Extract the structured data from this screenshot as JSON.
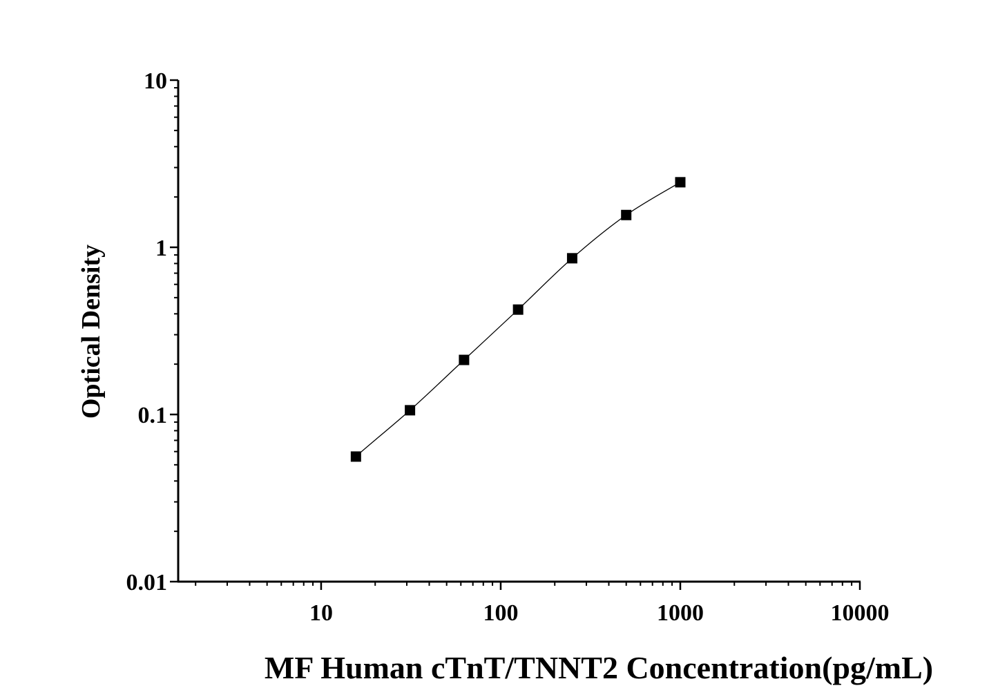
{
  "chart_data": {
    "type": "scatter",
    "title": "",
    "xlabel": "MF Human cTnT/TNNT2 Concentration(pg/mL)",
    "ylabel": "Optical Density",
    "xscale": "log",
    "yscale": "log",
    "xlim": [
      1.6,
      10000
    ],
    "ylim": [
      0.01,
      10
    ],
    "xticks": [
      10,
      100,
      1000,
      10000
    ],
    "xtick_labels": [
      "10",
      "100",
      "1000",
      "10000"
    ],
    "yticks": [
      0.01,
      0.1,
      1,
      10
    ],
    "ytick_labels": [
      "0.01",
      "0.1",
      "1",
      "10"
    ],
    "grid": false,
    "legend": "none",
    "marker": "square",
    "fit_line": true,
    "colors": {
      "marker": "#000000",
      "line": "#000000",
      "axis": "#000000"
    },
    "series": [
      {
        "x": [
          15.625,
          31.25,
          62.5,
          125,
          250,
          500,
          1000
        ],
        "y": [
          0.056,
          0.106,
          0.212,
          0.424,
          0.86,
          1.56,
          2.45
        ]
      }
    ]
  }
}
